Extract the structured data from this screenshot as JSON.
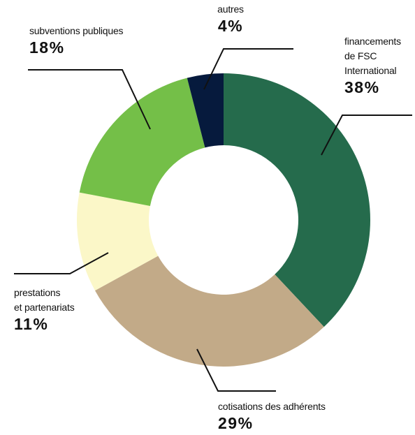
{
  "chart_data": {
    "type": "donut",
    "categories": [
      "financements\nde FSC\nInternational",
      "cotisations des adhérents",
      "prestations\net partenariats",
      "subventions publiques",
      "autres"
    ],
    "values": [
      38,
      29,
      11,
      18,
      4
    ],
    "value_labels": [
      "38%",
      "29%",
      "11%",
      "18%",
      "4%"
    ],
    "colors": [
      "#256b4c",
      "#c2aa88",
      "#fbf7c8",
      "#74bf48",
      "#061a3d"
    ]
  }
}
